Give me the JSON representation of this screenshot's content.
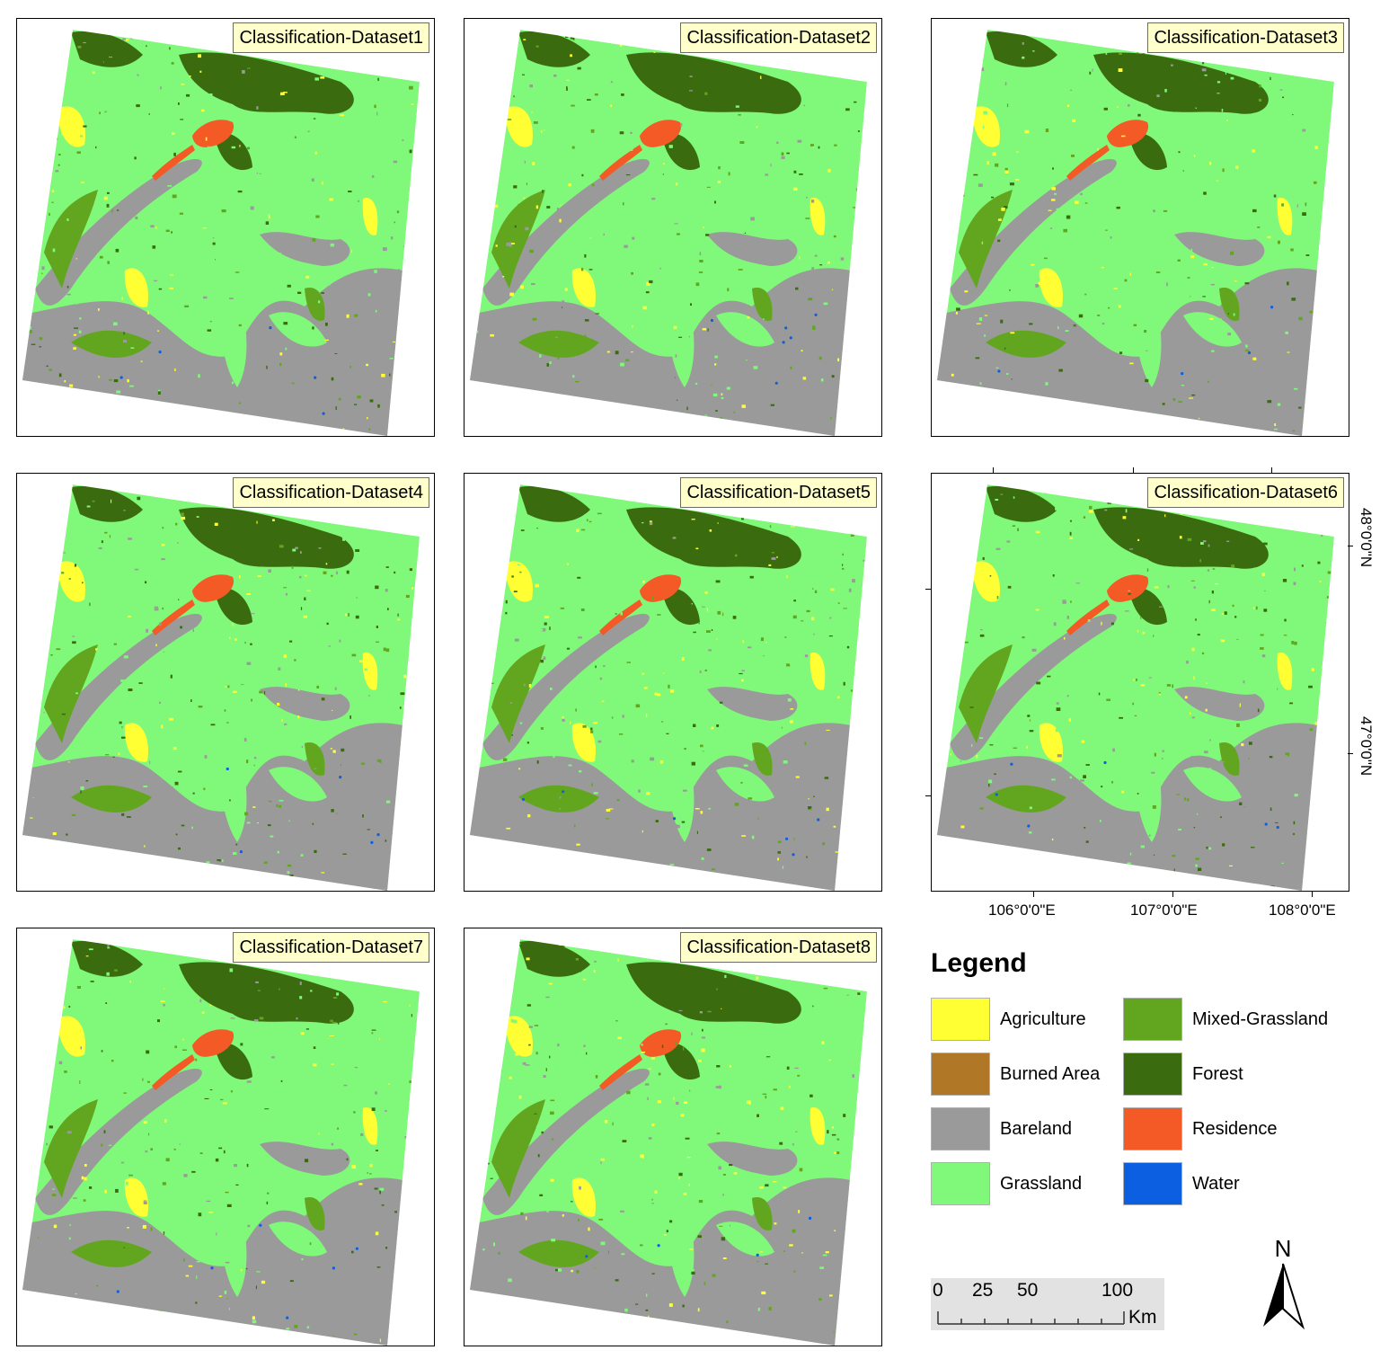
{
  "panels": [
    {
      "title": "Classification-Dataset1"
    },
    {
      "title": "Classification-Dataset2"
    },
    {
      "title": "Classification-Dataset3"
    },
    {
      "title": "Classification-Dataset4"
    },
    {
      "title": "Classification-Dataset5"
    },
    {
      "title": "Classification-Dataset6"
    },
    {
      "title": "Classification-Dataset7"
    },
    {
      "title": "Classification-Dataset8"
    }
  ],
  "grid_labels": {
    "longitude": [
      "106°0'0\"E",
      "107°0'0\"E",
      "108°0'0\"E"
    ],
    "latitude": [
      "48°0'0\"N",
      "47°0'0\"N"
    ]
  },
  "legend": {
    "title": "Legend",
    "items": [
      {
        "label": "Agriculture",
        "color": "#ffff33"
      },
      {
        "label": "Burned Area",
        "color": "#b07826"
      },
      {
        "label": "Bareland",
        "color": "#9a9a9a"
      },
      {
        "label": "Grassland",
        "color": "#80f97a"
      },
      {
        "label": "Mixed-Grassland",
        "color": "#62a620"
      },
      {
        "label": "Forest",
        "color": "#3a6b0e"
      },
      {
        "label": "Residence",
        "color": "#f35a25"
      },
      {
        "label": "Water",
        "color": "#0b5fe0"
      }
    ]
  },
  "scale_bar": {
    "ticks": [
      "0",
      "25",
      "50",
      "100"
    ],
    "unit": "Km"
  },
  "north_arrow": {
    "label": "N",
    "icon": "north-arrow-icon"
  }
}
